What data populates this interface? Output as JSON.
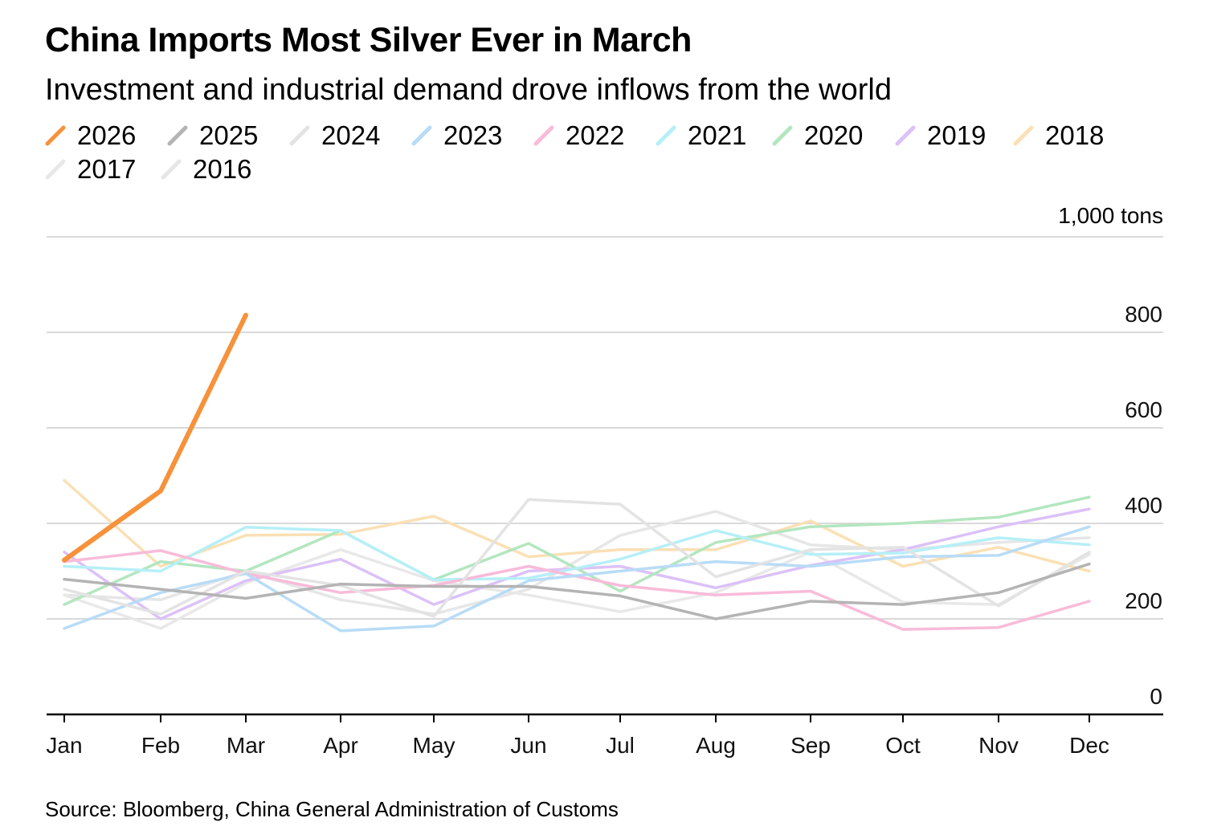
{
  "title": "China Imports Most Silver Ever in March",
  "subtitle": "Investment and industrial demand drove inflows from the world",
  "unit_label": "1,000 tons",
  "source": "Source: Bloomberg, China General Administration of Customs",
  "chart_data": {
    "type": "line",
    "title": "China Imports Most Silver Ever in March",
    "subtitle": "Investment and industrial demand drove inflows from the world",
    "ylabel": "1,000 tons",
    "ylim": [
      0,
      1000
    ],
    "yticks": [
      0,
      200,
      400,
      600,
      800
    ],
    "grid": true,
    "legend_position": "top",
    "categories": [
      "Jan",
      "Feb",
      "Mar",
      "Apr",
      "May",
      "Jun",
      "Jul",
      "Aug",
      "Sep",
      "Oct",
      "Nov",
      "Dec"
    ],
    "series": [
      {
        "name": "2026",
        "color": "#f7913a",
        "values": [
          323,
          468,
          836,
          null,
          null,
          null,
          null,
          null,
          null,
          null,
          null,
          null
        ]
      },
      {
        "name": "2025",
        "color": "#b4b4b4",
        "values": [
          283,
          262,
          243,
          273,
          268,
          268,
          248,
          200,
          237,
          230,
          255,
          315
        ]
      },
      {
        "name": "2024",
        "color": "#e3e3e3",
        "values": [
          262,
          210,
          300,
          270,
          205,
          450,
          440,
          288,
          345,
          350,
          227,
          340
        ]
      },
      {
        "name": "2023",
        "color": "#b8dcf7",
        "values": [
          180,
          255,
          295,
          175,
          185,
          280,
          300,
          320,
          310,
          330,
          333,
          393
        ]
      },
      {
        "name": "2022",
        "color": "#f8bbd9",
        "values": [
          320,
          343,
          295,
          255,
          270,
          310,
          270,
          250,
          258,
          178,
          182,
          237
        ]
      },
      {
        "name": "2021",
        "color": "#b6eff7",
        "values": [
          310,
          300,
          392,
          385,
          282,
          285,
          325,
          385,
          335,
          338,
          370,
          355
        ]
      },
      {
        "name": "2020",
        "color": "#b3e6bf",
        "values": [
          230,
          320,
          300,
          385,
          282,
          358,
          258,
          360,
          393,
          400,
          413,
          455
        ]
      },
      {
        "name": "2019",
        "color": "#dcc1f7",
        "values": [
          340,
          200,
          280,
          325,
          230,
          300,
          310,
          265,
          312,
          345,
          393,
          430
        ]
      },
      {
        "name": "2018",
        "color": "#fae0b5",
        "values": [
          490,
          310,
          375,
          377,
          415,
          330,
          345,
          345,
          405,
          310,
          350,
          300
        ]
      },
      {
        "name": "2017",
        "color": "#e8e8e8",
        "values": [
          250,
          180,
          275,
          345,
          280,
          250,
          215,
          255,
          340,
          235,
          230,
          335
        ]
      },
      {
        "name": "2016",
        "color": "#e6e6e6",
        "values": [
          250,
          240,
          300,
          240,
          210,
          262,
          375,
          425,
          355,
          345,
          360,
          370
        ]
      }
    ]
  }
}
